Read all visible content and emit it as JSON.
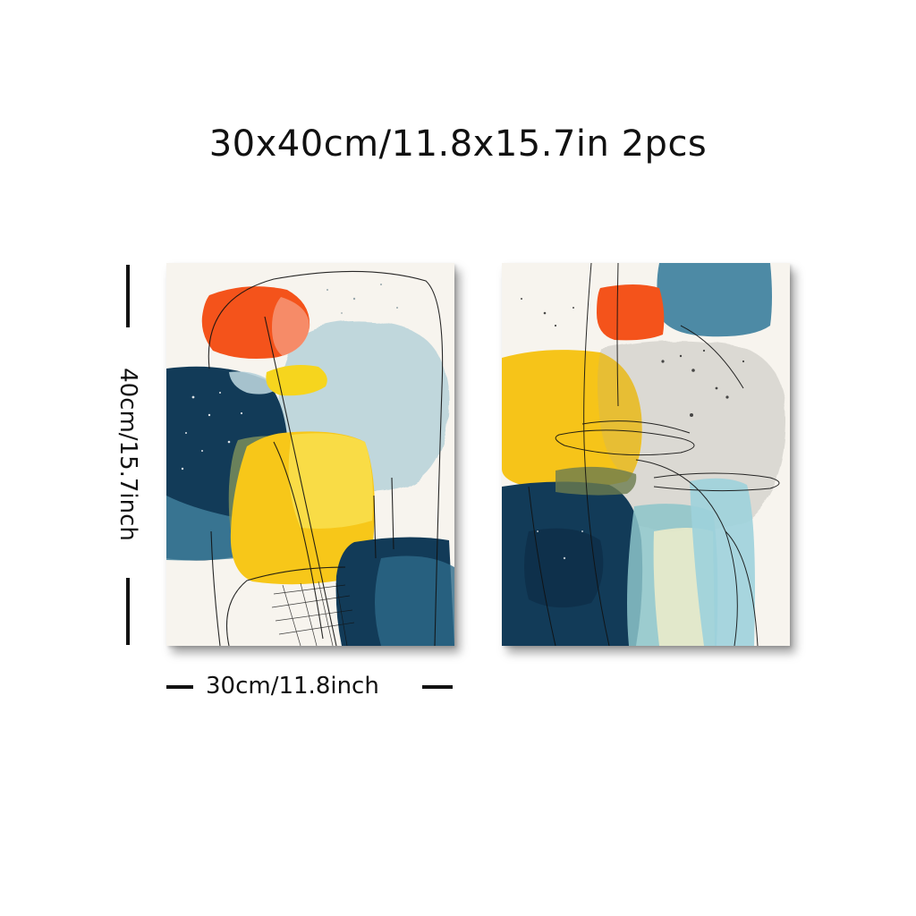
{
  "product": {
    "headline": "30x40cm/11.8x15.7in 2pcs",
    "pieces": 2
  },
  "dimensions": {
    "height_label": "40cm/15.7inch",
    "width_label": "30cm/11.8inch"
  },
  "artwork": {
    "style": "abstract mid-century watercolor shapes",
    "palette": [
      "#f4531b",
      "#f6c419",
      "#0f3a57",
      "#4f8ba7",
      "#a9cbd5",
      "#f7f4ee",
      "#111111"
    ]
  }
}
